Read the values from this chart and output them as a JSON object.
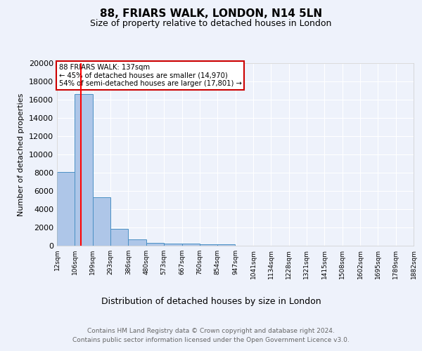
{
  "title1": "88, FRIARS WALK, LONDON, N14 5LN",
  "title2": "Size of property relative to detached houses in London",
  "xlabel": "Distribution of detached houses by size in London",
  "ylabel": "Number of detached properties",
  "annotation_title": "88 FRIARS WALK: 137sqm",
  "annotation_line1": "← 45% of detached houses are smaller (14,970)",
  "annotation_line2": "54% of semi-detached houses are larger (17,801) →",
  "footnote1": "Contains HM Land Registry data © Crown copyright and database right 2024.",
  "footnote2": "Contains public sector information licensed under the Open Government Licence v3.0.",
  "bar_edges": [
    12,
    106,
    199,
    293,
    386,
    480,
    573,
    667,
    760,
    854,
    947,
    1041,
    1134,
    1228,
    1321,
    1415,
    1508,
    1602,
    1695,
    1789,
    1882
  ],
  "bar_heights": [
    8100,
    16600,
    5300,
    1850,
    700,
    320,
    230,
    200,
    190,
    150,
    0,
    0,
    0,
    0,
    0,
    0,
    0,
    0,
    0,
    0
  ],
  "bar_color": "#aec6e8",
  "bar_edge_color": "#4a90c4",
  "red_line_x": 137,
  "background_color": "#eef2fb",
  "plot_bg_color": "#eef2fb",
  "annotation_box_color": "#ffffff",
  "annotation_box_edge": "#cc0000",
  "yticks": [
    0,
    2000,
    4000,
    6000,
    8000,
    10000,
    12000,
    14000,
    16000,
    18000,
    20000
  ],
  "xlim": [
    12,
    1882
  ],
  "ylim": [
    0,
    20000
  ],
  "tick_labels": [
    "12sqm",
    "106sqm",
    "199sqm",
    "293sqm",
    "386sqm",
    "480sqm",
    "573sqm",
    "667sqm",
    "760sqm",
    "854sqm",
    "947sqm",
    "1041sqm",
    "1134sqm",
    "1228sqm",
    "1321sqm",
    "1415sqm",
    "1508sqm",
    "1602sqm",
    "1695sqm",
    "1789sqm",
    "1882sqm"
  ]
}
